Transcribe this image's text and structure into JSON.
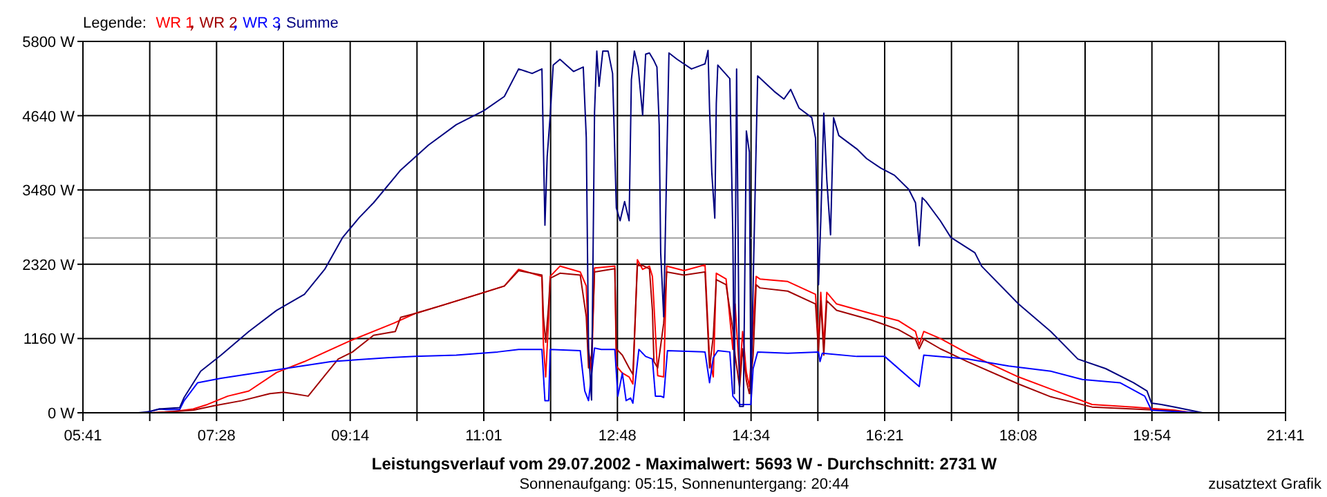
{
  "chart_data": {
    "type": "line",
    "title": "Leistungsverlauf vom 29.07.2002 - Maximalwert: 5693 W - Durchschnitt: 2731 W",
    "subtitle": "Sonnenaufgang: 05:15, Sonnenuntergang: 20:44",
    "legend_title": "Legende:",
    "legend": "top left",
    "grid": true,
    "annotations": [
      "zusatztext Grafik"
    ],
    "xlim": [
      5.6833,
      21.6833
    ],
    "xticks": [
      {
        "value": 5.6833,
        "label": "05:41"
      },
      {
        "value": 6.5722,
        "label": null
      },
      {
        "value": 7.4611,
        "label": "07:28"
      },
      {
        "value": 8.35,
        "label": null
      },
      {
        "value": 9.2389,
        "label": "09:14"
      },
      {
        "value": 10.1278,
        "label": null
      },
      {
        "value": 11.0167,
        "label": "11:01"
      },
      {
        "value": 11.9056,
        "label": null
      },
      {
        "value": 12.7944,
        "label": "12:48"
      },
      {
        "value": 13.6833,
        "label": null
      },
      {
        "value": 14.5722,
        "label": "14:34"
      },
      {
        "value": 15.4611,
        "label": null
      },
      {
        "value": 16.35,
        "label": "16:21"
      },
      {
        "value": 17.2389,
        "label": null
      },
      {
        "value": 18.1278,
        "label": "18:08"
      },
      {
        "value": 19.0167,
        "label": null
      },
      {
        "value": 19.9056,
        "label": "19:54"
      },
      {
        "value": 20.7944,
        "label": null
      },
      {
        "value": 21.6833,
        "label": "21:41"
      }
    ],
    "ylim": [
      0,
      5800
    ],
    "yticks": [
      {
        "value": 0,
        "label": "0 W"
      },
      {
        "value": 1160,
        "label": "1160 W"
      },
      {
        "value": 2320,
        "label": "2320 W"
      },
      {
        "value": 3480,
        "label": "3480 W"
      },
      {
        "value": 4640,
        "label": "4640 W"
      },
      {
        "value": 5800,
        "label": "5800 W"
      }
    ],
    "ref_lines": [
      {
        "axis": "y",
        "value": 2731,
        "color": "#a0a0a0"
      }
    ],
    "series": [
      {
        "name": "WR 1",
        "color": "#ff0000",
        "x": [
          6.6,
          6.88,
          7.15,
          7.34,
          7.61,
          7.89,
          8.26,
          8.63,
          9.23,
          9.82,
          10.1,
          10.47,
          11.02,
          11.29,
          11.48,
          11.79,
          11.81,
          11.84,
          11.88,
          11.9,
          12.03,
          12.3,
          12.38,
          12.41,
          12.45,
          12.49,
          12.76,
          12.78,
          12.86,
          12.95,
          13.0,
          13.06,
          13.13,
          13.22,
          13.26,
          13.28,
          13.33,
          13.41,
          13.45,
          13.68,
          13.96,
          14.02,
          14.07,
          14.11,
          14.24,
          14.33,
          14.36,
          14.42,
          14.46,
          14.51,
          14.55,
          14.6,
          14.64,
          14.69,
          15.06,
          15.43,
          15.47,
          15.5,
          15.54,
          15.58,
          15.71,
          16.17,
          16.53,
          16.76,
          16.81,
          16.87,
          17.09,
          17.45,
          18.13,
          18.56,
          19.11,
          19.66,
          20.21,
          20.45
        ],
        "values": [
          0,
          20,
          60,
          130,
          260,
          340,
          630,
          800,
          1120,
          1400,
          1550,
          1680,
          1880,
          1980,
          2240,
          2130,
          1060,
          560,
          1490,
          2130,
          2290,
          2200,
          1980,
          990,
          630,
          2260,
          2290,
          730,
          620,
          560,
          450,
          2390,
          2240,
          2290,
          2130,
          1700,
          580,
          560,
          2290,
          2220,
          2310,
          840,
          560,
          2180,
          2090,
          990,
          1700,
          560,
          1270,
          630,
          410,
          1340,
          2130,
          2090,
          2050,
          1850,
          1100,
          1880,
          1060,
          1880,
          1700,
          1550,
          1440,
          1270,
          1060,
          1270,
          1160,
          930,
          560,
          370,
          130,
          90,
          40,
          0
        ]
      },
      {
        "name": "WR 2",
        "color": "#a00000",
        "x": [
          6.6,
          6.88,
          7.15,
          7.43,
          7.8,
          8.17,
          8.35,
          8.48,
          8.68,
          8.9,
          9.08,
          9.27,
          9.55,
          9.84,
          9.91,
          10.1,
          10.47,
          11.02,
          11.29,
          11.48,
          11.79,
          11.81,
          11.84,
          11.88,
          11.9,
          12.03,
          12.3,
          12.38,
          12.41,
          12.45,
          12.49,
          12.76,
          12.78,
          12.86,
          12.95,
          13.0,
          13.06,
          13.13,
          13.22,
          13.26,
          13.28,
          13.33,
          13.41,
          13.45,
          13.68,
          13.96,
          14.02,
          14.07,
          14.11,
          14.24,
          14.33,
          14.36,
          14.42,
          14.46,
          14.51,
          14.55,
          14.6,
          14.64,
          14.69,
          15.06,
          15.43,
          15.47,
          15.5,
          15.54,
          15.58,
          15.71,
          16.17,
          16.53,
          16.76,
          16.81,
          16.87,
          17.09,
          17.45,
          18.13,
          18.56,
          19.11,
          19.66,
          20.21,
          20.45
        ],
        "values": [
          0,
          20,
          40,
          110,
          190,
          300,
          320,
          300,
          260,
          580,
          840,
          950,
          1210,
          1270,
          1490,
          1550,
          1680,
          1880,
          1980,
          2220,
          2150,
          1500,
          1100,
          1700,
          2100,
          2180,
          2150,
          1500,
          700,
          900,
          2200,
          2250,
          1000,
          900,
          700,
          600,
          2300,
          2300,
          2250,
          1600,
          800,
          700,
          1400,
          2200,
          2150,
          2200,
          700,
          1200,
          2080,
          2000,
          1300,
          900,
          400,
          1000,
          500,
          300,
          900,
          2000,
          1950,
          1900,
          1700,
          950,
          1750,
          900,
          1750,
          1600,
          1450,
          1300,
          1150,
          1000,
          1150,
          1000,
          800,
          450,
          250,
          90,
          60,
          30,
          0
        ]
      },
      {
        "name": "WR 3",
        "color": "#0000ff",
        "x": [
          6.51,
          6.7,
          6.79,
          6.97,
          7.03,
          7.21,
          7.52,
          8.26,
          8.99,
          9.73,
          10.1,
          10.65,
          11.2,
          11.48,
          11.79,
          11.83,
          11.88,
          11.9,
          12.3,
          12.36,
          12.41,
          12.49,
          12.58,
          12.76,
          12.8,
          12.86,
          12.91,
          12.97,
          13.0,
          13.08,
          13.17,
          13.26,
          13.3,
          13.37,
          13.41,
          13.46,
          13.96,
          14.02,
          14.07,
          14.13,
          14.29,
          14.33,
          14.42,
          14.57,
          14.6,
          14.66,
          15.06,
          15.47,
          15.49,
          15.52,
          15.98,
          16.35,
          16.81,
          16.87,
          17.45,
          18.0,
          18.56,
          18.98,
          19.48,
          19.81,
          19.9,
          20.21,
          20.58
        ],
        "values": [
          0,
          60,
          50,
          50,
          190,
          470,
          540,
          670,
          800,
          860,
          880,
          900,
          950,
          990,
          990,
          190,
          190,
          990,
          970,
          340,
          190,
          1010,
          990,
          990,
          260,
          620,
          190,
          230,
          150,
          990,
          880,
          840,
          260,
          260,
          240,
          970,
          950,
          470,
          860,
          970,
          950,
          260,
          130,
          130,
          690,
          950,
          930,
          950,
          800,
          930,
          880,
          880,
          410,
          900,
          840,
          730,
          650,
          520,
          470,
          260,
          40,
          20,
          0
        ]
      },
      {
        "name": "Summe",
        "color": "#000080",
        "x": [
          6.42,
          6.57,
          6.7,
          6.97,
          7.03,
          7.25,
          7.52,
          7.89,
          8.26,
          8.63,
          8.9,
          9.14,
          9.36,
          9.55,
          9.91,
          10.28,
          10.65,
          11.02,
          11.29,
          11.48,
          11.66,
          11.79,
          11.83,
          11.86,
          11.9,
          11.94,
          12.03,
          12.21,
          12.34,
          12.38,
          12.41,
          12.45,
          12.49,
          12.52,
          12.55,
          12.6,
          12.67,
          12.73,
          12.78,
          12.83,
          12.89,
          12.95,
          12.98,
          13.02,
          13.07,
          13.13,
          13.17,
          13.22,
          13.28,
          13.32,
          13.35,
          13.37,
          13.41,
          13.48,
          13.59,
          13.78,
          13.96,
          14.0,
          14.02,
          14.05,
          14.09,
          14.11,
          14.13,
          14.29,
          14.33,
          14.35,
          14.38,
          14.42,
          14.47,
          14.51,
          14.55,
          14.57,
          14.6,
          14.66,
          14.88,
          15.01,
          15.1,
          15.21,
          15.38,
          15.43,
          15.47,
          15.5,
          15.54,
          15.58,
          15.63,
          15.67,
          15.74,
          15.98,
          16.11,
          16.3,
          16.48,
          16.67,
          16.76,
          16.81,
          16.85,
          16.9,
          17.09,
          17.23,
          17.55,
          17.64,
          18.13,
          18.56,
          18.92,
          19.29,
          19.66,
          19.84,
          19.9,
          20.03,
          20.21,
          20.58
        ],
        "values": [
          0,
          20,
          60,
          80,
          240,
          650,
          900,
          1270,
          1600,
          1850,
          2240,
          2740,
          3050,
          3280,
          3790,
          4180,
          4500,
          4720,
          4940,
          5370,
          5300,
          5370,
          2930,
          4000,
          4640,
          5430,
          5520,
          5330,
          5400,
          4300,
          1000,
          200,
          4700,
          5650,
          5100,
          5650,
          5650,
          5300,
          3200,
          3000,
          3300,
          3000,
          5200,
          5650,
          5400,
          4650,
          5600,
          5620,
          5500,
          5400,
          4500,
          2500,
          1500,
          5620,
          5520,
          5370,
          5450,
          5660,
          4760,
          3750,
          3040,
          4830,
          5430,
          5220,
          2780,
          300,
          5370,
          100,
          100,
          4400,
          4070,
          300,
          2000,
          5260,
          5020,
          4900,
          5050,
          4760,
          4610,
          4290,
          2000,
          3000,
          4680,
          3640,
          2780,
          4610,
          4330,
          4120,
          3970,
          3820,
          3710,
          3490,
          3280,
          2610,
          3360,
          3300,
          3000,
          2740,
          2500,
          2290,
          1700,
          1270,
          840,
          690,
          470,
          340,
          150,
          130,
          90,
          0
        ]
      }
    ]
  }
}
